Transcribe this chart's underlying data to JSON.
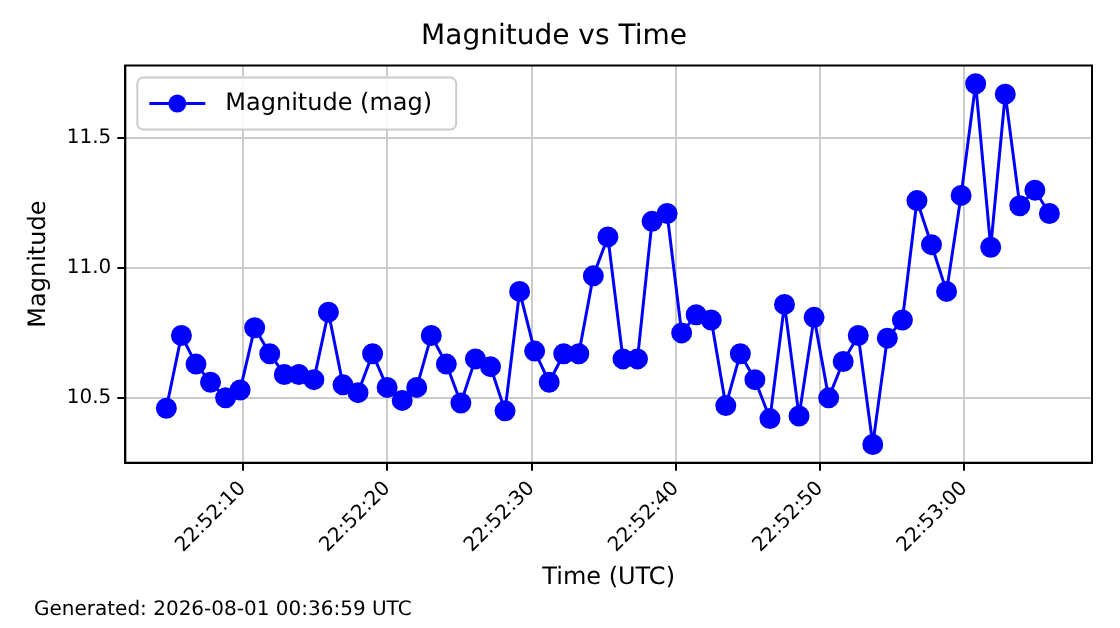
{
  "chart_data": {
    "type": "line",
    "title": "Magnitude vs Time",
    "xlabel": "Time (UTC)",
    "ylabel": "Magnitude",
    "annotations": [
      "Generated: 2026-08-01 00:36:59 UTC"
    ],
    "x": [
      22.86797,
      22.86826,
      22.86854,
      22.86882,
      22.86911,
      22.86939,
      22.86967,
      22.86996,
      22.87024,
      22.87052,
      22.87081,
      22.87109,
      22.87137,
      22.87166,
      22.87194,
      22.87222,
      22.87251,
      22.87279,
      22.87307,
      22.87336,
      22.87364,
      22.87392,
      22.87421,
      22.87449,
      22.87477,
      22.87506,
      22.87534,
      22.87562,
      22.87591,
      22.87619,
      22.87647,
      22.87676,
      22.87704,
      22.87732,
      22.87761,
      22.87789,
      22.87817,
      22.87846,
      22.87874,
      22.87902,
      22.8793,
      22.87959,
      22.87987,
      22.88015,
      22.88044,
      22.88072,
      22.881,
      22.88129,
      22.88157,
      22.88185,
      22.88214,
      22.88242,
      22.8827,
      22.88299,
      22.88327,
      22.88355,
      22.88384,
      22.88412,
      22.8844,
      22.88469,
      22.88497
    ],
    "series": [
      {
        "name": "Magnitude (mag)",
        "color": "#0000ff",
        "values": [
          10.46,
          10.74,
          10.63,
          10.56,
          10.5,
          10.53,
          10.77,
          10.67,
          10.59,
          10.59,
          10.57,
          10.83,
          10.55,
          10.52,
          10.67,
          10.54,
          10.49,
          10.54,
          10.74,
          10.63,
          10.48,
          10.65,
          10.62,
          10.45,
          10.91,
          10.68,
          10.56,
          10.67,
          10.67,
          10.97,
          11.12,
          10.65,
          10.65,
          11.18,
          11.21,
          10.75,
          10.82,
          10.8,
          10.47,
          10.67,
          10.57,
          10.42,
          10.86,
          10.43,
          10.81,
          10.5,
          10.64,
          10.74,
          10.32,
          10.73,
          10.8,
          11.26,
          11.09,
          10.91,
          11.28,
          11.71,
          11.08,
          11.67,
          11.24,
          11.3,
          11.21
        ]
      }
    ],
    "xlim": [
      22.86718,
      22.88579
    ],
    "xticks": [
      {
        "value": 22.869444,
        "label": "22:52:10"
      },
      {
        "value": 22.872222,
        "label": "22:52:20"
      },
      {
        "value": 22.875,
        "label": "22:52:30"
      },
      {
        "value": 22.877778,
        "label": "22:52:40"
      },
      {
        "value": 22.880556,
        "label": "22:52:50"
      },
      {
        "value": 22.883333,
        "label": "22:53:00"
      }
    ],
    "ylim": [
      10.25,
      11.78
    ],
    "yticks": [
      {
        "value": 10.5,
        "label": "10.5"
      },
      {
        "value": 11,
        "label": "11.0"
      },
      {
        "value": 11.5,
        "label": "11.5"
      }
    ],
    "grid": true,
    "legend": "top left",
    "marker": "circle",
    "line_style": "solid"
  }
}
